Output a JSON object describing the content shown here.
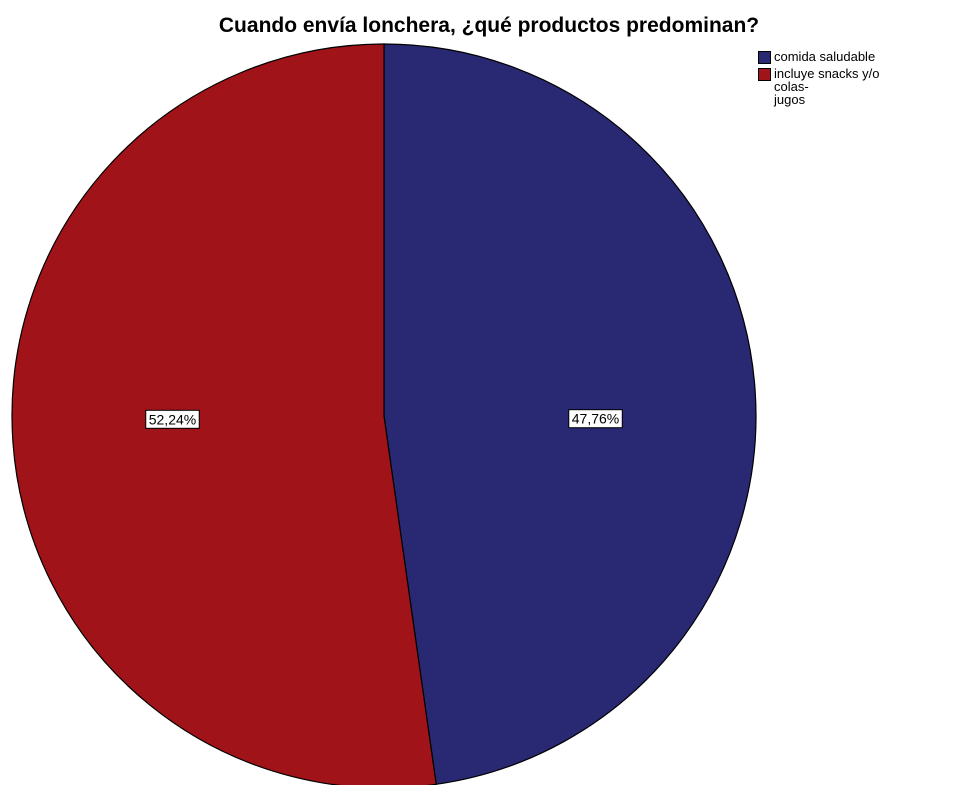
{
  "chart_data": {
    "type": "pie",
    "title": "Cuando envía lonchera, ¿qué productos predominan?",
    "categories": [
      "comida saludable",
      "incluye snacks y/o colas-\njugos"
    ],
    "values": [
      47.76,
      52.24
    ],
    "labels": [
      "47,76%",
      "52,24%"
    ],
    "colors": [
      "#282873",
      "#A01419"
    ],
    "legend_position": "top-right"
  }
}
